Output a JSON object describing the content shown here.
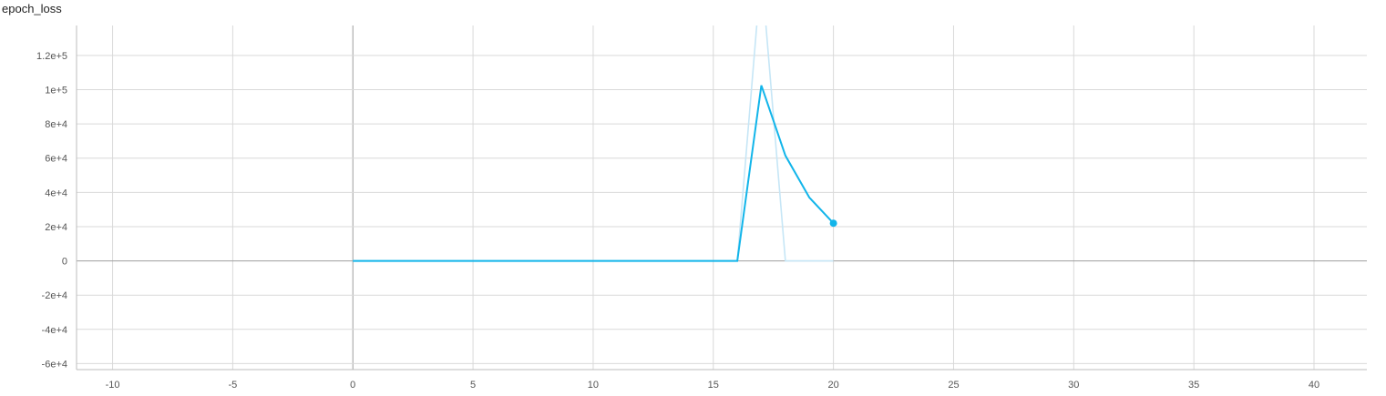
{
  "chart_data": {
    "type": "line",
    "title": "epoch_loss",
    "xlabel": "",
    "ylabel": "",
    "xlim": [
      -11.5,
      42.2
    ],
    "ylim": [
      -63500,
      137500
    ],
    "x_ticks": [
      {
        "value": -10,
        "label": "-10"
      },
      {
        "value": -5,
        "label": "-5"
      },
      {
        "value": 0,
        "label": "0"
      },
      {
        "value": 5,
        "label": "5"
      },
      {
        "value": 10,
        "label": "10"
      },
      {
        "value": 15,
        "label": "15"
      },
      {
        "value": 20,
        "label": "20"
      },
      {
        "value": 25,
        "label": "25"
      },
      {
        "value": 30,
        "label": "30"
      },
      {
        "value": 35,
        "label": "35"
      },
      {
        "value": 40,
        "label": "40"
      }
    ],
    "y_ticks": [
      {
        "value": 120000,
        "label": "1.2e+5"
      },
      {
        "value": 100000,
        "label": "1e+5"
      },
      {
        "value": 80000,
        "label": "8e+4"
      },
      {
        "value": 60000,
        "label": "6e+4"
      },
      {
        "value": 40000,
        "label": "4e+4"
      },
      {
        "value": 20000,
        "label": "2e+4"
      },
      {
        "value": 0,
        "label": "0"
      },
      {
        "value": -20000,
        "label": "-2e+4"
      },
      {
        "value": -40000,
        "label": "-4e+4"
      },
      {
        "value": -60000,
        "label": "-6e+4"
      }
    ],
    "grid": true,
    "legend": "none",
    "series": [
      {
        "role": "raw",
        "color": "#c6e6f6",
        "x": [
          0,
          1,
          2,
          3,
          4,
          5,
          6,
          7,
          8,
          9,
          10,
          11,
          12,
          13,
          14,
          15,
          16,
          17,
          18,
          19,
          20
        ],
        "y": [
          0,
          0,
          0,
          0,
          0,
          0,
          0,
          0,
          0,
          0,
          0,
          0,
          0,
          0,
          0,
          0,
          0,
          170000,
          0,
          0,
          0
        ]
      },
      {
        "role": "smoothed",
        "color": "#12b5ea",
        "x": [
          0,
          1,
          2,
          3,
          4,
          5,
          6,
          7,
          8,
          9,
          10,
          11,
          12,
          13,
          14,
          15,
          16,
          17,
          18,
          19,
          20
        ],
        "y": [
          0,
          0,
          0,
          0,
          0,
          0,
          0,
          0,
          0,
          0,
          0,
          0,
          0,
          0,
          0,
          0,
          0,
          102500,
          61500,
          37000,
          22000
        ]
      }
    ]
  }
}
